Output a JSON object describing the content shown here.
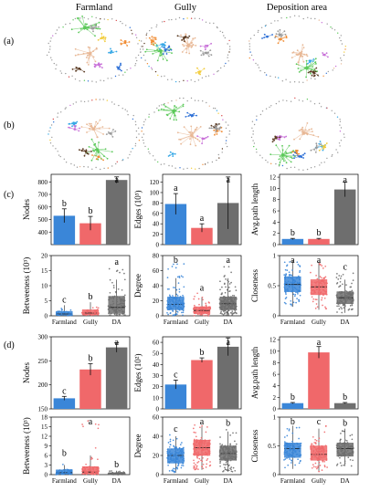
{
  "figure": {
    "columns": [
      "Farmland",
      "Gully",
      "Deposition area"
    ],
    "panel_labels": [
      "(a)",
      "(b)",
      "(c)",
      "(d)"
    ],
    "colors": {
      "farmland": "#3a86d8",
      "gully": "#f0686a",
      "da": "#6e6e6e",
      "networks": [
        "#e8b896",
        "#5cc95a",
        "#37a8e6",
        "#f08b32",
        "#c870d8",
        "#5a3a22",
        "#9a9a9a",
        "#2c6fd6",
        "#f2cc3c",
        "#d84a4a"
      ]
    }
  },
  "chart_data": [
    {
      "id": "c-nodes",
      "type": "bar",
      "ylabel": "Nodes",
      "categories": [
        "Farmland",
        "Gully",
        "DA"
      ],
      "show_xticks": false,
      "ylim": [
        300,
        860
      ],
      "yticks": [
        400,
        500,
        600,
        700,
        800
      ],
      "values": [
        530,
        470,
        815
      ],
      "errors": [
        55,
        55,
        25
      ],
      "letters": [
        "b",
        "b",
        "a"
      ]
    },
    {
      "id": "c-edges",
      "type": "bar",
      "ylabel": "Edges (10³)",
      "categories": [
        "Farmland",
        "Gully",
        "DA"
      ],
      "show_xticks": false,
      "ylim": [
        0,
        135
      ],
      "yticks": [
        0,
        20,
        40,
        60,
        80,
        100,
        120
      ],
      "values": [
        78,
        32,
        80
      ],
      "errors": [
        20,
        8,
        50
      ],
      "letters": [
        "a",
        "a",
        "a"
      ]
    },
    {
      "id": "c-apl",
      "type": "bar",
      "ylabel": "Avg.path length",
      "categories": [
        "Farmland",
        "Gully",
        "DA"
      ],
      "show_xticks": false,
      "ylim": [
        0,
        12.5
      ],
      "yticks": [
        0,
        2,
        4,
        6,
        8,
        10,
        12
      ],
      "values": [
        1.0,
        1.0,
        9.8
      ],
      "errors": [
        0.1,
        0.1,
        1.3
      ],
      "letters": [
        "b",
        "b",
        "a"
      ]
    },
    {
      "id": "c-betw",
      "type": "box",
      "ylabel": "Betweeness (10³)",
      "categories": [
        "Farmland",
        "Gully",
        "DA"
      ],
      "show_xticks": true,
      "ylim": [
        0,
        20
      ],
      "yticks": [
        0,
        5,
        10,
        15,
        20
      ],
      "boxes": [
        {
          "q1": 0.2,
          "median": 0.6,
          "q3": 1.5,
          "wlo": 0,
          "whi": 3.5,
          "spread_max": 3,
          "n": 35
        },
        {
          "q1": 0.3,
          "median": 0.9,
          "q3": 2.0,
          "wlo": 0,
          "whi": 4.5,
          "spread_max": 3.5,
          "n": 40
        },
        {
          "q1": 0.8,
          "median": 2.8,
          "q3": 6.5,
          "wlo": 0,
          "whi": 12,
          "spread_max": 16,
          "n": 120
        }
      ],
      "letters": [
        "c",
        "b",
        "a"
      ]
    },
    {
      "id": "c-degree",
      "type": "box",
      "ylabel": "Degree",
      "categories": [
        "Farmland",
        "Gully",
        "DA"
      ],
      "show_xticks": true,
      "ylim": [
        0,
        80
      ],
      "yticks": [
        0,
        20,
        40,
        60,
        80
      ],
      "boxes": [
        {
          "q1": 8,
          "median": 15,
          "q3": 25,
          "wlo": 0,
          "whi": 50,
          "spread_max": 75,
          "n": 160
        },
        {
          "q1": 3,
          "median": 7,
          "q3": 12,
          "wlo": 0,
          "whi": 25,
          "spread_max": 30,
          "n": 90
        },
        {
          "q1": 8,
          "median": 16,
          "q3": 25,
          "wlo": 0,
          "whi": 50,
          "spread_max": 68,
          "n": 220
        }
      ],
      "letters": [
        "b",
        "a",
        "a"
      ]
    },
    {
      "id": "c-close",
      "type": "box",
      "ylabel": "Closeness",
      "categories": [
        "Farmland",
        "Gully",
        "DA"
      ],
      "show_xticks": true,
      "ylim": [
        0,
        1.0
      ],
      "yticks": [
        0.0,
        0.5,
        1.0
      ],
      "boxes": [
        {
          "q1": 0.4,
          "median": 0.52,
          "q3": 0.65,
          "wlo": 0.15,
          "whi": 0.92,
          "spread_max": 0.92,
          "n": 120
        },
        {
          "q1": 0.35,
          "median": 0.48,
          "q3": 0.6,
          "wlo": 0.1,
          "whi": 0.9,
          "spread_max": 0.9,
          "n": 100
        },
        {
          "q1": 0.2,
          "median": 0.3,
          "q3": 0.4,
          "wlo": 0.05,
          "whi": 0.6,
          "spread_max": 0.72,
          "n": 140
        }
      ],
      "letters": [
        "a",
        "a",
        "c"
      ]
    },
    {
      "id": "d-nodes",
      "type": "bar",
      "ylabel": "Nodes",
      "categories": [
        "Farmland",
        "Gully",
        "DA"
      ],
      "show_xticks": false,
      "ylim": [
        150,
        300
      ],
      "yticks": [
        150,
        200,
        250,
        300
      ],
      "values": [
        172,
        232,
        278
      ],
      "errors": [
        4,
        12,
        10
      ],
      "letters": [
        "c",
        "b",
        "a"
      ]
    },
    {
      "id": "d-edges",
      "type": "bar",
      "ylabel": "Edges (10²)",
      "categories": [
        "Farmland",
        "Gully",
        "DA"
      ],
      "show_xticks": false,
      "ylim": [
        0,
        65
      ],
      "yticks": [
        0,
        10,
        20,
        30,
        40,
        50,
        60
      ],
      "values": [
        22,
        44,
        56
      ],
      "errors": [
        4,
        2,
        8
      ],
      "letters": [
        "c",
        "b",
        "a"
      ]
    },
    {
      "id": "d-apl",
      "type": "bar",
      "ylabel": "Avg.path length",
      "categories": [
        "Farmland",
        "Gully",
        "DA"
      ],
      "show_xticks": false,
      "ylim": [
        0,
        12.5
      ],
      "yticks": [
        0,
        2,
        4,
        6,
        8,
        10,
        12
      ],
      "values": [
        1.0,
        9.8,
        1.0
      ],
      "errors": [
        0.1,
        1.0,
        0.1
      ],
      "letters": [
        "b",
        "a",
        "b"
      ]
    },
    {
      "id": "d-betw",
      "type": "box",
      "ylabel": "Betweeness (10³)",
      "categories": [
        "Farmland",
        "Gully",
        "DA"
      ],
      "show_xticks": true,
      "ylim": [
        0,
        18
      ],
      "yticks": [
        0,
        3,
        6,
        9,
        12,
        15,
        18
      ],
      "boxes": [
        {
          "q1": 0.2,
          "median": 0.6,
          "q3": 1.5,
          "wlo": 0,
          "whi": 3,
          "spread_max": 5,
          "n": 60
        },
        {
          "q1": 0.3,
          "median": 0.8,
          "q3": 2.5,
          "wlo": 0,
          "whi": 6,
          "spread_max": 17,
          "n": 90
        },
        {
          "q1": 0.1,
          "median": 0.3,
          "q3": 0.6,
          "wlo": 0,
          "whi": 1.2,
          "spread_max": 1.5,
          "n": 70
        }
      ],
      "letters": [
        "b",
        "a",
        "b"
      ]
    },
    {
      "id": "d-degree",
      "type": "box",
      "ylabel": "Degree",
      "categories": [
        "Farmland",
        "Gully",
        "DA"
      ],
      "show_xticks": true,
      "ylim": [
        0,
        60
      ],
      "yticks": [
        0,
        20,
        40,
        60
      ],
      "boxes": [
        {
          "q1": 12,
          "median": 20,
          "q3": 27,
          "wlo": 2,
          "whi": 40,
          "spread_max": 42,
          "n": 130
        },
        {
          "q1": 20,
          "median": 28,
          "q3": 36,
          "wlo": 5,
          "whi": 50,
          "spread_max": 52,
          "n": 170
        },
        {
          "q1": 15,
          "median": 22,
          "q3": 30,
          "wlo": 3,
          "whi": 45,
          "spread_max": 48,
          "n": 170
        }
      ],
      "letters": [
        "c",
        "a",
        "b"
      ]
    },
    {
      "id": "d-close",
      "type": "box",
      "ylabel": "Closeness",
      "categories": [
        "Farmland",
        "Gully",
        "DA"
      ],
      "show_xticks": true,
      "ylim": [
        0,
        1.0
      ],
      "yticks": [
        0.0,
        0.5,
        1.0
      ],
      "boxes": [
        {
          "q1": 0.3,
          "median": 0.45,
          "q3": 0.55,
          "wlo": 0.1,
          "whi": 0.85,
          "spread_max": 0.85,
          "n": 110
        },
        {
          "q1": 0.25,
          "median": 0.35,
          "q3": 0.5,
          "wlo": 0.05,
          "whi": 0.8,
          "spread_max": 0.85,
          "n": 110
        },
        {
          "q1": 0.32,
          "median": 0.45,
          "q3": 0.55,
          "wlo": 0.15,
          "whi": 0.8,
          "spread_max": 0.8,
          "n": 120
        }
      ],
      "letters": [
        "b",
        "c",
        "b"
      ]
    }
  ]
}
